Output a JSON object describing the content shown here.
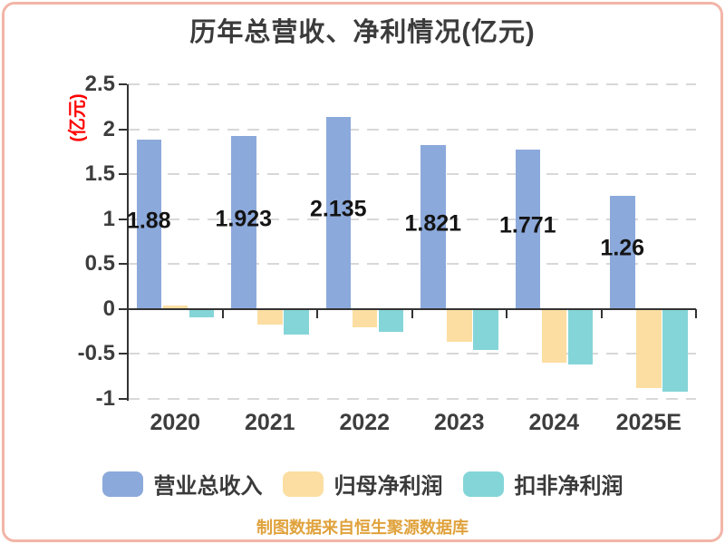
{
  "frame": {
    "border_color": "#F2B5A8"
  },
  "chart_data": {
    "type": "bar",
    "title": "历年总营收、净利情况(亿元)",
    "ylabel": "(亿元)",
    "ylabel_color": "#FF0000",
    "xlabel": "",
    "categories": [
      "2020",
      "2021",
      "2022",
      "2023",
      "2024",
      "2025E"
    ],
    "series": [
      {
        "name": "营业总收入",
        "color": "#8CA9DB",
        "values": [
          1.88,
          1.923,
          2.135,
          1.821,
          1.771,
          1.26
        ],
        "labels": [
          "1.88",
          "1.923",
          "2.135",
          "1.821",
          "1.771",
          "1.26"
        ]
      },
      {
        "name": "归母净利润",
        "color": "#FCDEA2",
        "values": [
          0.04,
          -0.16,
          -0.19,
          -0.35,
          -0.59,
          -0.87
        ]
      },
      {
        "name": "扣非净利润",
        "color": "#84D5D8",
        "values": [
          -0.08,
          -0.27,
          -0.24,
          -0.45,
          -0.61,
          -0.91
        ]
      }
    ],
    "y_ticks": [
      2.5,
      2,
      1.5,
      1,
      0.5,
      0,
      -0.5,
      -1
    ],
    "y_tick_labels": [
      "2.5",
      "2",
      "1.5",
      "1",
      "0.5",
      "0",
      "-0.5",
      "-1"
    ],
    "ylim": [
      -1,
      2.5
    ],
    "grid": "horizontal-dashed",
    "grid_color": "#D8D8D8",
    "axis_color": "#333333",
    "legend_position": "bottom"
  },
  "footer": {
    "text": "制图数据来自恒生聚源数据库",
    "color": "#E0A23C"
  }
}
